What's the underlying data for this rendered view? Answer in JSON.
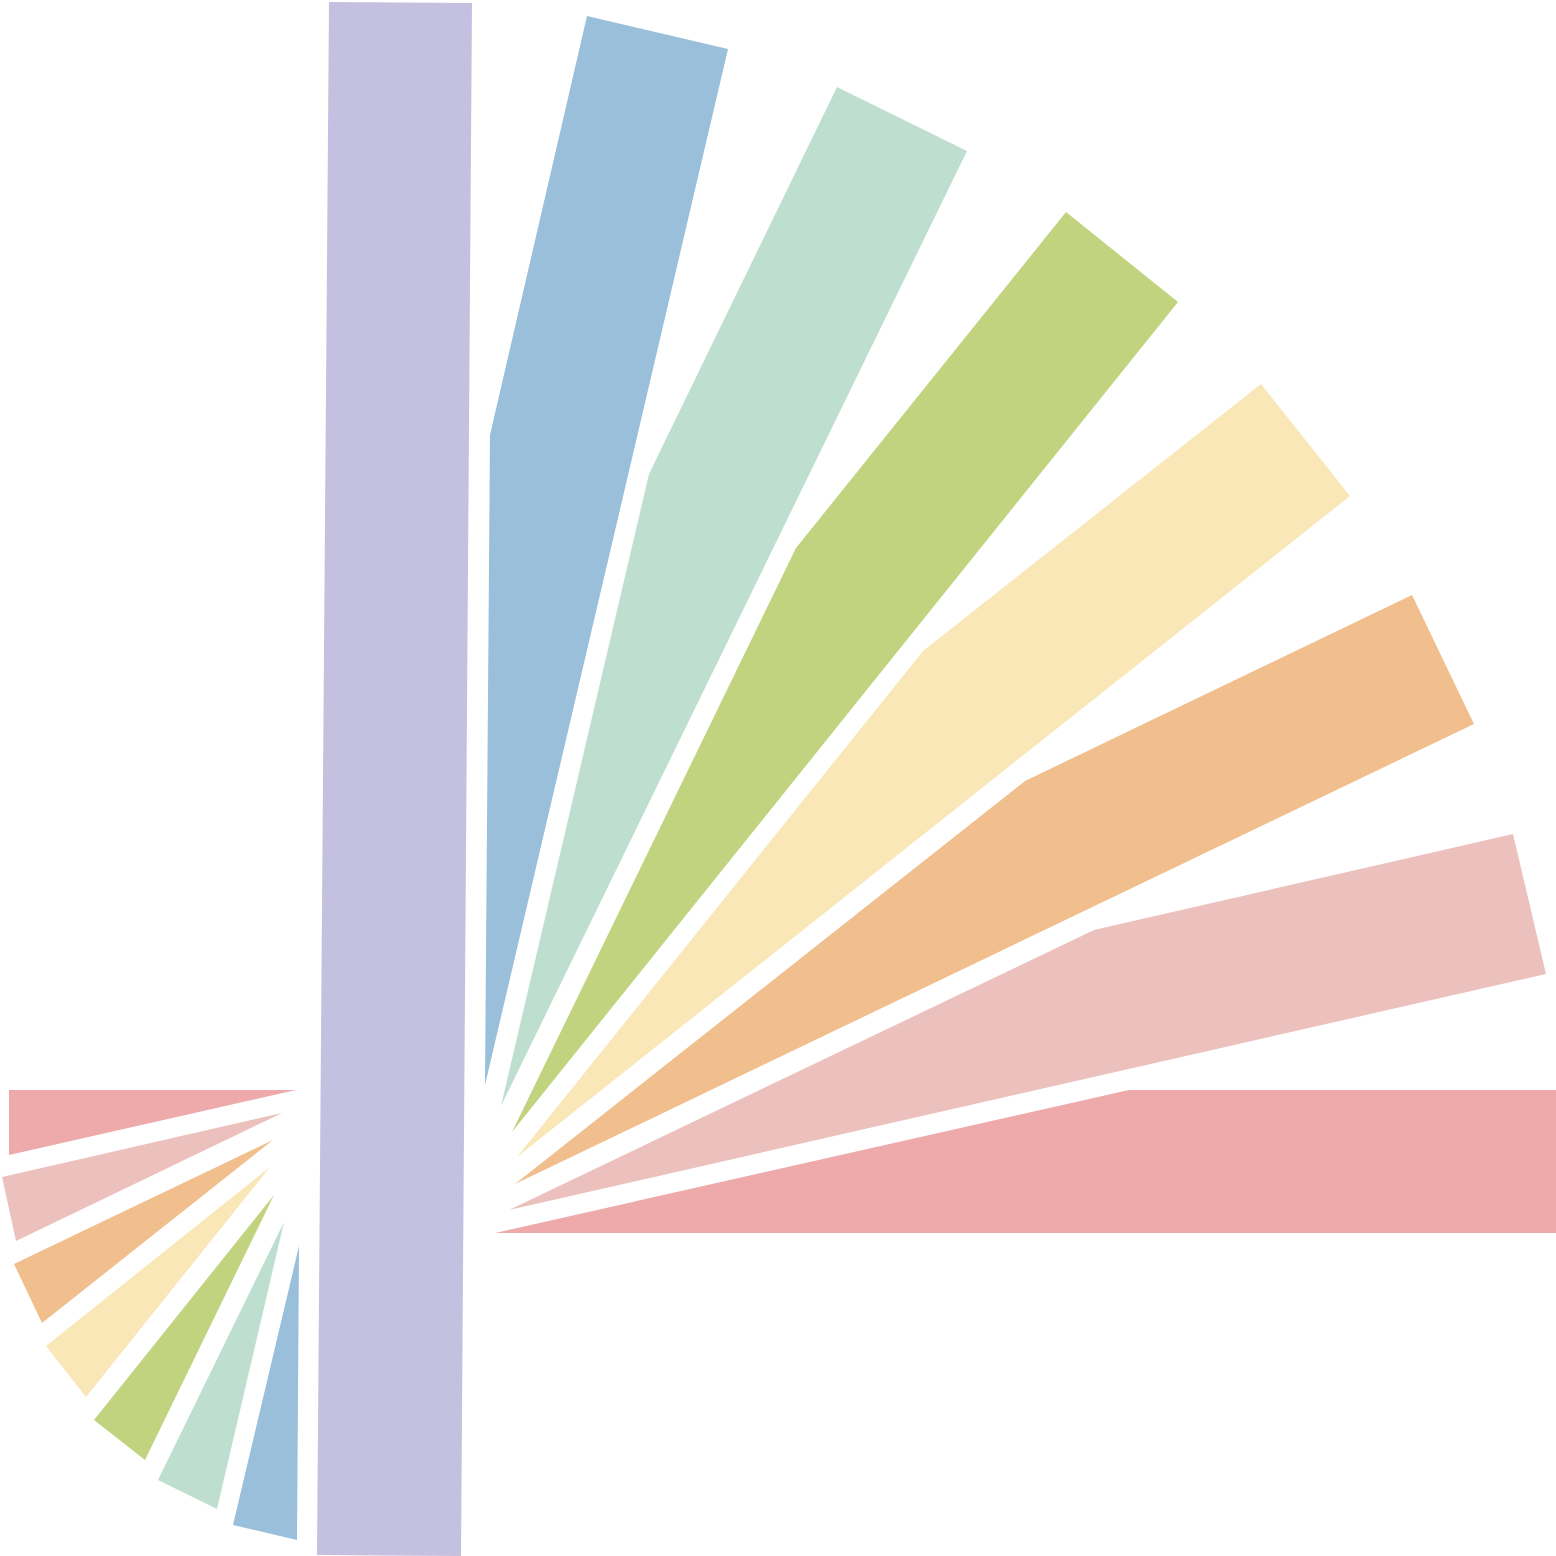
{
  "graphic": {
    "name": "radiating-color-rays-logo",
    "background_color": "#ffffff"
  },
  "palette": {
    "lavender": "#c4c0df",
    "blue": "#99bfda",
    "mint": "#bedfcf",
    "green": "#c1d37f",
    "yellow": "#fae7b7",
    "orange": "#f1be8d",
    "light_pink": "#ecc1bd",
    "pink": "#eea9aa"
  },
  "rays": [
    {
      "name": "lavender-vertical-bar",
      "color_key": "lavender"
    },
    {
      "name": "upper-blue-ray",
      "color_key": "blue"
    },
    {
      "name": "upper-mint-ray",
      "color_key": "mint"
    },
    {
      "name": "upper-green-ray",
      "color_key": "green"
    },
    {
      "name": "upper-yellow-ray",
      "color_key": "yellow"
    },
    {
      "name": "upper-orange-ray",
      "color_key": "orange"
    },
    {
      "name": "upper-light-pink-ray",
      "color_key": "light_pink"
    },
    {
      "name": "upper-pink-ray",
      "color_key": "pink"
    },
    {
      "name": "lower-pink-ray",
      "color_key": "pink"
    },
    {
      "name": "lower-light-pink-ray",
      "color_key": "light_pink"
    },
    {
      "name": "lower-orange-ray",
      "color_key": "orange"
    },
    {
      "name": "lower-yellow-ray",
      "color_key": "yellow"
    },
    {
      "name": "lower-green-ray",
      "color_key": "green"
    },
    {
      "name": "lower-mint-ray",
      "color_key": "mint"
    },
    {
      "name": "lower-blue-ray",
      "color_key": "blue"
    }
  ]
}
